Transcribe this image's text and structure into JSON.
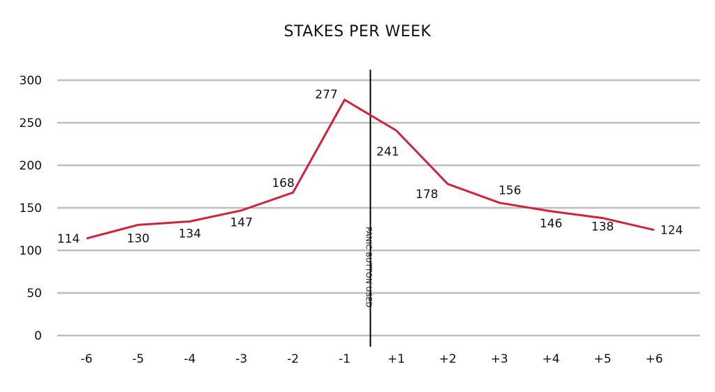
{
  "chart_data": {
    "type": "line",
    "title": "STAKES PER WEEK",
    "xlabel": "",
    "ylabel": "",
    "categories": [
      "-6",
      "-5",
      "-4",
      "-3",
      "-2",
      "-1",
      "+1",
      "+2",
      "+3",
      "+4",
      "+5",
      "+6"
    ],
    "series": [
      {
        "values": [
          114,
          130,
          134,
          147,
          168,
          277,
          241,
          178,
          156,
          146,
          138,
          124
        ]
      }
    ],
    "data_labels": [
      "114",
      "130",
      "134",
      "147",
      "168",
      "277",
      "241",
      "178",
      "156",
      "146",
      "138",
      "124"
    ],
    "ylim": [
      0,
      300
    ],
    "yticks": [
      0,
      50,
      100,
      150,
      200,
      250,
      300
    ],
    "grid": true,
    "legend": "none",
    "annotation": {
      "text": "PANIC BUTTON USED",
      "position_between": [
        "-1",
        "+1"
      ]
    },
    "colors": {
      "series": "#d0233a",
      "grid": "#bdbdbd",
      "marker_line": "#000000"
    }
  }
}
